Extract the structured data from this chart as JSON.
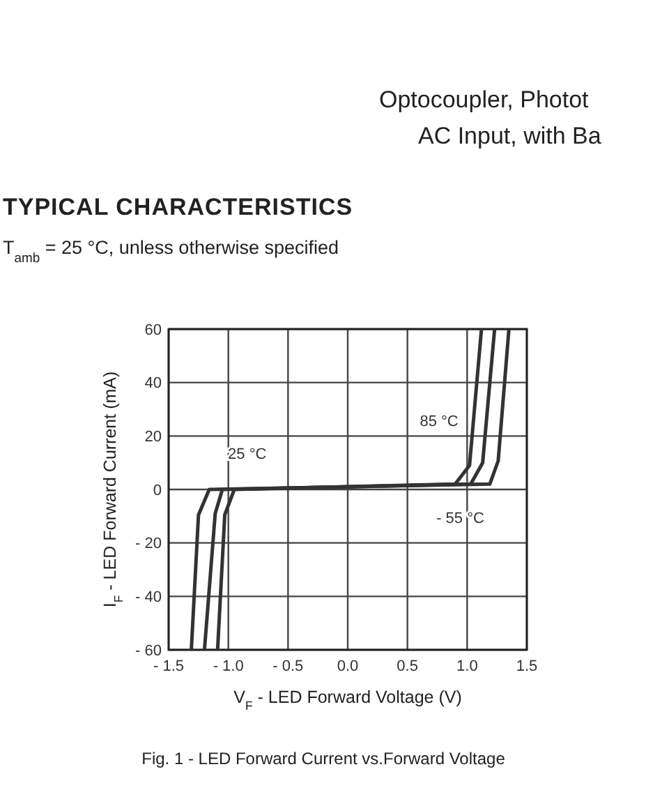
{
  "chart_data": {
    "type": "line",
    "title": "TYPICAL CHARACTERISTICS",
    "subtitle": "T$_{amb}$ = 25 °C, unless otherwise specified",
    "xlabel": "V$_{F}$ - LED Forward Voltage (V)",
    "ylabel": "I$_{F}$ - LED Forward Current (mA)",
    "xlim": [
      -1.5,
      1.5
    ],
    "ylim": [
      -60,
      60
    ],
    "xticks": [
      {
        "value": -1.5,
        "label": "- 1.5"
      },
      {
        "value": -1,
        "label": "- 1.0"
      },
      {
        "value": -0.5,
        "label": "- 0.5"
      },
      {
        "value": 0,
        "label": "0.0"
      },
      0.5,
      {
        "value": 1,
        "label": "1.0"
      },
      1.5
    ],
    "yticks": [
      {
        "value": -60,
        "label": "- 60"
      },
      {
        "value": -40,
        "label": "- 40"
      },
      {
        "value": -20,
        "label": "- 20"
      },
      0,
      20,
      40,
      60
    ],
    "grid": true,
    "marker": "none",
    "line_style": "solid",
    "series": [
      {
        "name": "85 °C",
        "color": "#333333",
        "x": [
          -1.09,
          -1.03,
          -0.95,
          0.9,
          1.02,
          1.12
        ],
        "values": [
          -60,
          -9.5,
          0,
          2,
          9,
          60
        ]
      },
      {
        "name": "25 °C",
        "color": "#333333",
        "x": [
          -1.2,
          -1.11,
          -1.05,
          1.03,
          1.13,
          1.23
        ],
        "values": [
          -60,
          -9,
          0,
          2,
          10,
          60
        ]
      },
      {
        "name": "- 55 °C",
        "color": "#333333",
        "x": [
          -1.31,
          -1.25,
          -1.16,
          1.19,
          1.26,
          1.35
        ],
        "values": [
          -60,
          -9.5,
          0,
          2,
          10.7,
          60
        ]
      }
    ],
    "annotations": [
      "Optocoupler, Photot",
      "AC Input, with Ba",
      "Fig. 1 - LED Forward Current vs.Forward Voltage"
    ]
  }
}
